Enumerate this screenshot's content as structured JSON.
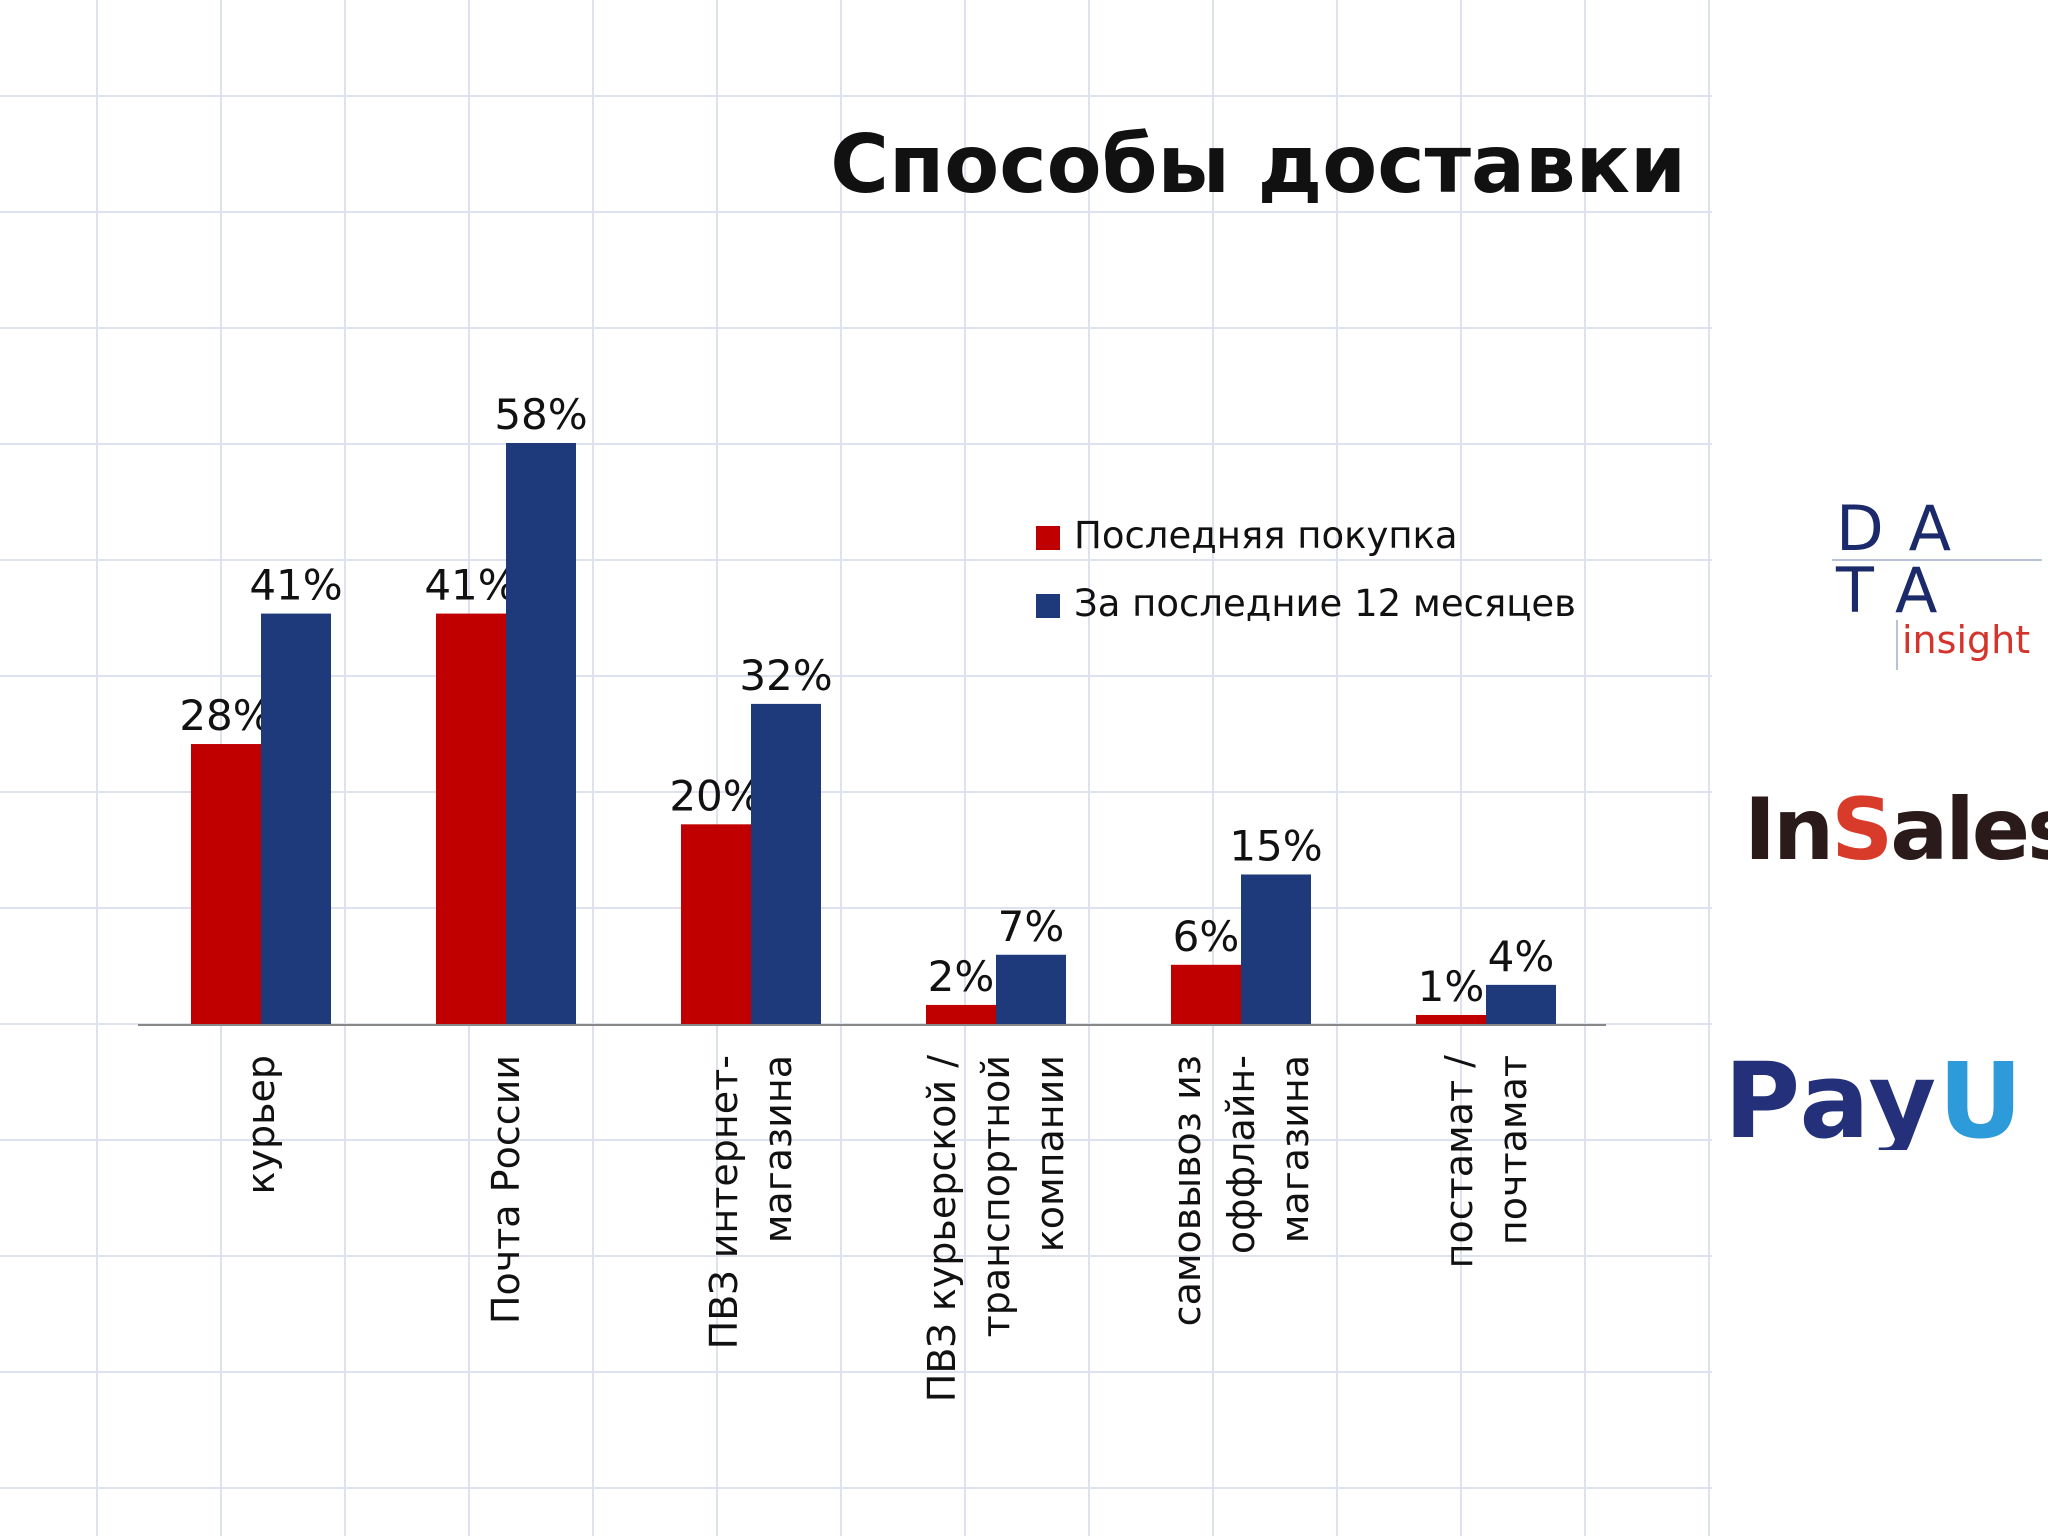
{
  "title": "Способы доставки",
  "colors": {
    "series_red": "#c00000",
    "series_blue": "#1f3a7a",
    "axis": "#888888",
    "grid": "#dde2ee"
  },
  "chart_data": {
    "type": "bar",
    "title": "Способы доставки",
    "xlabel": "",
    "ylabel": "",
    "ylim": [
      0,
      58
    ],
    "grid": true,
    "legend_position": "right",
    "categories": [
      [
        "курьер"
      ],
      [
        "Почта России"
      ],
      [
        "ПВЗ интернет-",
        "магазина"
      ],
      [
        "ПВЗ курьерской /",
        "транспортной",
        "компании"
      ],
      [
        "самовывоз из",
        "оффлайн-",
        "магазина"
      ],
      [
        "постамат /",
        "почтамат"
      ]
    ],
    "series": [
      {
        "name": "Последняя покупка",
        "color": "#c00000",
        "values": [
          28,
          41,
          20,
          2,
          6,
          1
        ],
        "labels": [
          "28%",
          "41%",
          "20%",
          "2%",
          "6%",
          "1%"
        ]
      },
      {
        "name": "За последние 12 месяцев",
        "color": "#1f3a7a",
        "values": [
          41,
          58,
          32,
          7,
          15,
          4
        ],
        "labels": [
          "41%",
          "58%",
          "32%",
          "7%",
          "15%",
          "4%"
        ]
      }
    ]
  },
  "logos": {
    "data_insight": {
      "line1": "DA",
      "line2": "TA",
      "word": "insight"
    },
    "insales": {
      "part1": "In",
      "part2": "S",
      "part3": "ales"
    },
    "payu": {
      "part1": "Pay",
      "part2": "U"
    }
  }
}
